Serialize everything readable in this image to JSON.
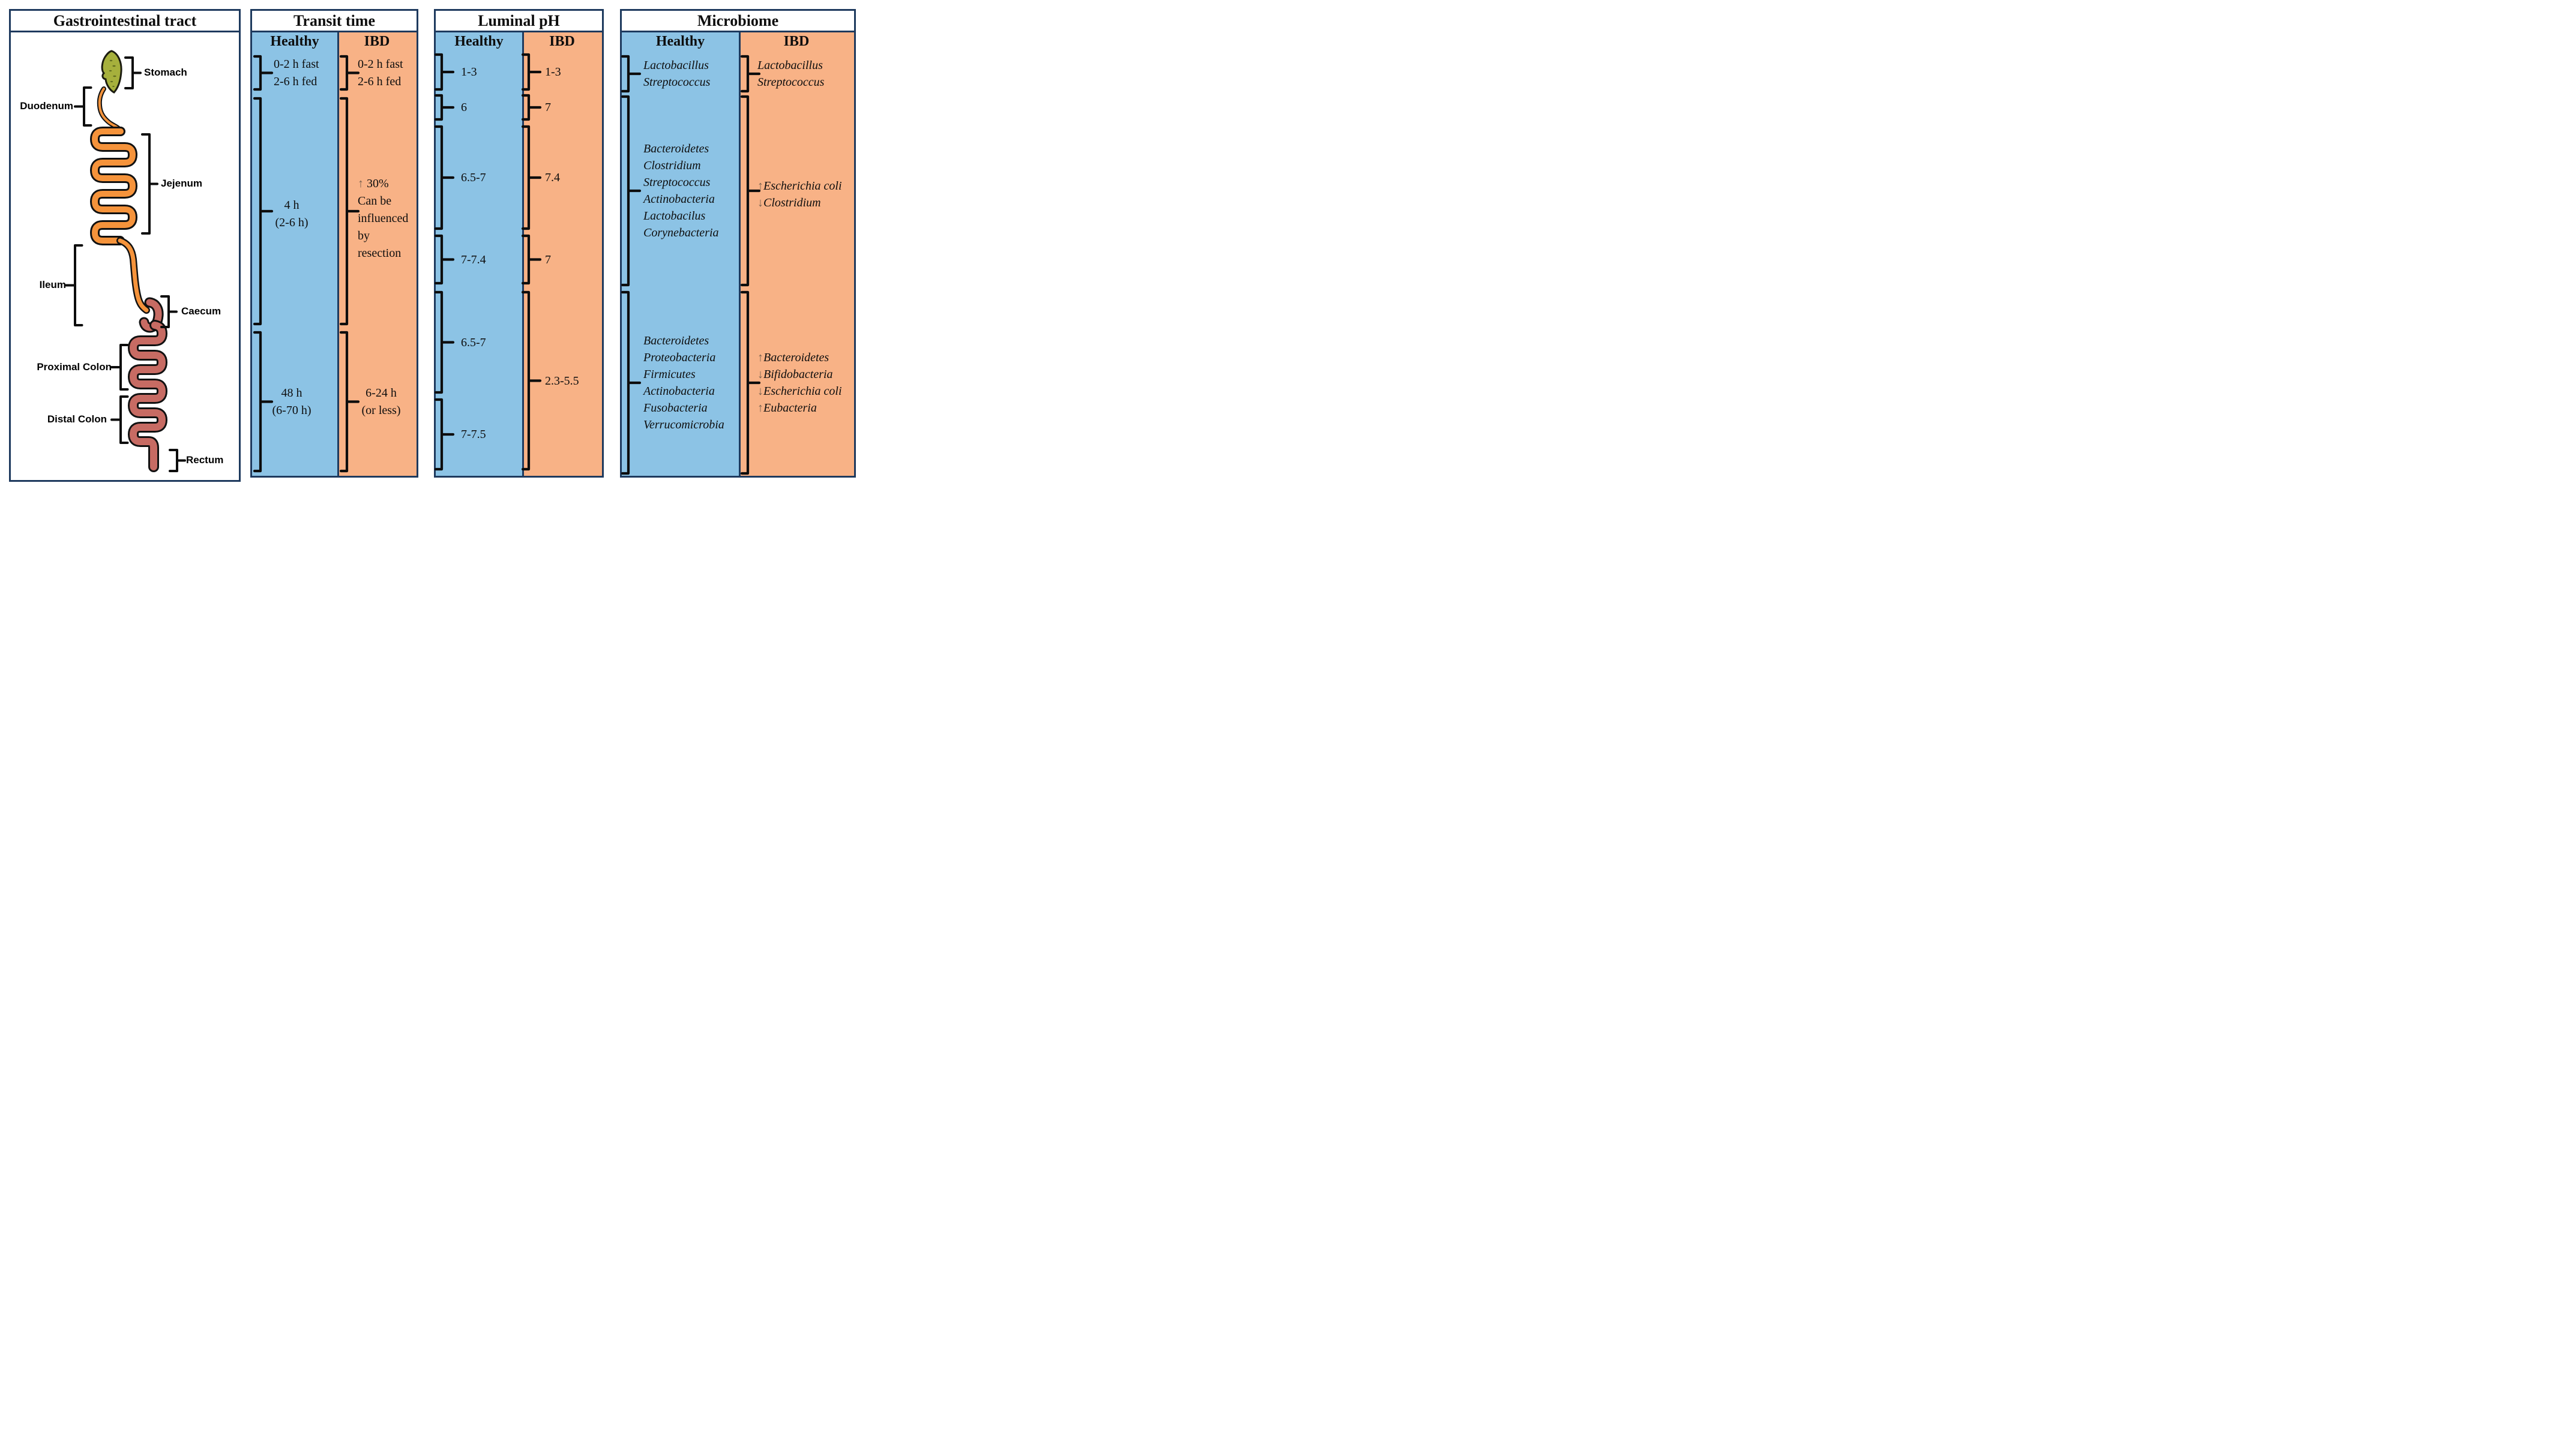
{
  "figure": {
    "colors": {
      "healthy_blue": "#8CC3E5",
      "ibd_orange": "#F8B286",
      "border_navy": "#1E3A5E",
      "stomach_olive": "#A6B03C",
      "stomach_speckle": "#626D20",
      "intestine_orange": "#F5933B",
      "colon_rose": "#C76B63",
      "ink": "#0D0D0D",
      "arrow_brown": "#77604F"
    }
  },
  "gi_panel": {
    "title": "Gastrointestinal tract",
    "structures": [
      {
        "label": "Stomach"
      },
      {
        "label": "Duodenum"
      },
      {
        "label": "Jejenum"
      },
      {
        "label": "Ileum"
      },
      {
        "label": "Caecum"
      },
      {
        "label": "Proximal Colon"
      },
      {
        "label": "Distal Colon"
      },
      {
        "label": "Rectum"
      }
    ]
  },
  "transit_panel": {
    "title": "Transit time",
    "columns": [
      {
        "header": "Healthy",
        "cells": [
          {
            "lines": [
              "0-2 h fast",
              "2-6 h fed"
            ]
          },
          {
            "lines": [
              "4 h",
              "(2-6 h)"
            ]
          },
          {
            "lines": [
              "48 h",
              "(6-70 h)"
            ]
          }
        ]
      },
      {
        "header": "IBD",
        "cells": [
          {
            "lines": [
              "0-2 h fast",
              "2-6 h fed"
            ]
          },
          {
            "lines": [
              "↑ 30%",
              "Can be",
              "influenced",
              "by",
              "resection"
            ]
          },
          {
            "lines": [
              "6-24 h",
              "(or less)"
            ]
          }
        ]
      }
    ]
  },
  "ph_panel": {
    "title": "Luminal pH",
    "columns": [
      {
        "header": "Healthy",
        "cells": [
          {
            "lines": [
              "1-3"
            ]
          },
          {
            "lines": [
              "6"
            ]
          },
          {
            "lines": [
              "6.5-7"
            ]
          },
          {
            "lines": [
              "7-7.4"
            ]
          },
          {
            "lines": [
              "6.5-7"
            ]
          },
          {
            "lines": [
              "7-7.5"
            ]
          }
        ]
      },
      {
        "header": "IBD",
        "cells": [
          {
            "lines": [
              "1-3"
            ]
          },
          {
            "lines": [
              "7"
            ]
          },
          {
            "lines": [
              "7.4"
            ]
          },
          {
            "lines": [
              "7"
            ]
          },
          {
            "lines": [
              "2.3-5.5"
            ]
          }
        ]
      }
    ]
  },
  "microbiome_panel": {
    "title": "Microbiome",
    "columns": [
      {
        "header": "Healthy",
        "cells": [
          {
            "lines": [
              "Lactobacillus",
              "Streptococcus"
            ],
            "italic": true
          },
          {
            "lines": [
              "Bacteroidetes",
              "Clostridium",
              "Streptococcus",
              "Actinobacteria",
              "Lactobacilus",
              "Corynebacteria"
            ],
            "italic": true
          },
          {
            "lines": [
              "Bacteroidetes",
              "Proteobacteria",
              "Firmicutes",
              "Actinobacteria",
              "Fusobacteria",
              "Verrucomicrobia"
            ],
            "italic": true
          }
        ]
      },
      {
        "header": "IBD",
        "cells": [
          {
            "lines": [
              "Lactobacillus",
              "Streptococcus"
            ],
            "italic": true
          },
          {
            "lines": [
              "↑Escherichia coli",
              "↓Clostridium"
            ],
            "italic": true
          },
          {
            "lines": [
              "↑Bacteroidetes",
              "↓Bifidobacteria",
              "↓Escherichia coli",
              "↑Eubacteria"
            ],
            "italic": true
          }
        ]
      }
    ]
  }
}
